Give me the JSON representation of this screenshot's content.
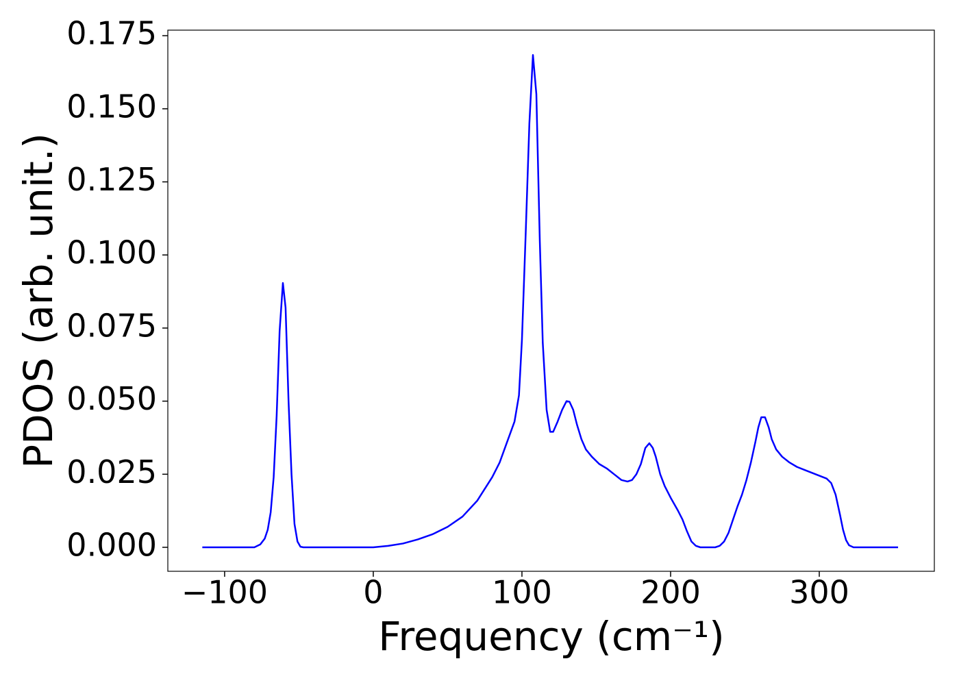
{
  "chart_data": {
    "type": "line",
    "xlabel": "Frequency (cm⁻¹)",
    "ylabel": "PDOS (arb. unit.)",
    "color": "#0000ff",
    "x": [
      -115,
      -80,
      -76,
      -73,
      -71,
      -69,
      -67,
      -65,
      -63,
      -60.8,
      -59,
      -57,
      -55,
      -53,
      -51,
      -49,
      -47,
      0,
      10,
      20,
      30,
      40,
      50,
      60,
      70,
      80,
      85,
      90,
      95,
      98,
      100,
      102.5,
      105,
      107.4,
      109.7,
      112,
      114,
      116.6,
      119,
      121,
      124,
      127,
      130,
      132,
      134.5,
      137,
      140,
      143,
      147,
      152,
      157,
      162,
      167,
      171,
      174,
      177,
      180,
      183,
      185.7,
      188,
      190,
      193,
      196,
      200,
      205,
      208,
      211,
      214,
      217,
      220,
      230,
      233,
      236,
      239,
      242,
      245,
      248,
      251,
      254,
      257,
      259,
      261,
      263.5,
      266,
      268,
      271,
      275,
      280,
      285,
      290,
      295,
      300,
      305,
      308,
      311,
      314,
      316,
      318,
      320,
      323,
      353
    ],
    "values": [
      0,
      0,
      0.001,
      0.003,
      0.006,
      0.012,
      0.024,
      0.045,
      0.074,
      0.0904,
      0.082,
      0.05,
      0.025,
      0.008,
      0.002,
      0.0002,
      0,
      0,
      0.0005,
      0.0013,
      0.0027,
      0.0045,
      0.007,
      0.0105,
      0.016,
      0.024,
      0.029,
      0.036,
      0.043,
      0.052,
      0.071,
      0.107,
      0.145,
      0.1684,
      0.155,
      0.105,
      0.07,
      0.047,
      0.0395,
      0.0395,
      0.043,
      0.047,
      0.05,
      0.0498,
      0.047,
      0.042,
      0.037,
      0.0335,
      0.031,
      0.0285,
      0.027,
      0.025,
      0.023,
      0.0225,
      0.023,
      0.025,
      0.0285,
      0.034,
      0.0356,
      0.034,
      0.031,
      0.025,
      0.021,
      0.017,
      0.0125,
      0.0095,
      0.0055,
      0.002,
      0.0005,
      0,
      0,
      0.0005,
      0.002,
      0.005,
      0.0095,
      0.014,
      0.018,
      0.023,
      0.029,
      0.036,
      0.041,
      0.0445,
      0.0445,
      0.041,
      0.037,
      0.0335,
      0.031,
      0.029,
      0.0275,
      0.0265,
      0.0255,
      0.0245,
      0.0235,
      0.022,
      0.018,
      0.011,
      0.006,
      0.0025,
      0.0007,
      0,
      0
    ],
    "xlim": [
      -138.2,
      377.4
    ],
    "ylim": [
      -0.0082,
      0.1769
    ],
    "xticks": [
      {
        "value": -100,
        "label": "−100"
      },
      0,
      100,
      200,
      300
    ],
    "yticks": [
      {
        "value": 0,
        "label": "0.000"
      },
      {
        "value": 0.025,
        "label": "0.025"
      },
      {
        "value": 0.05,
        "label": "0.050"
      },
      {
        "value": 0.075,
        "label": "0.075"
      },
      {
        "value": 0.1,
        "label": "0.100"
      },
      {
        "value": 0.125,
        "label": "0.125"
      },
      {
        "value": 0.15,
        "label": "0.150"
      },
      {
        "value": 0.175,
        "label": "0.175"
      }
    ],
    "grid": false
  }
}
